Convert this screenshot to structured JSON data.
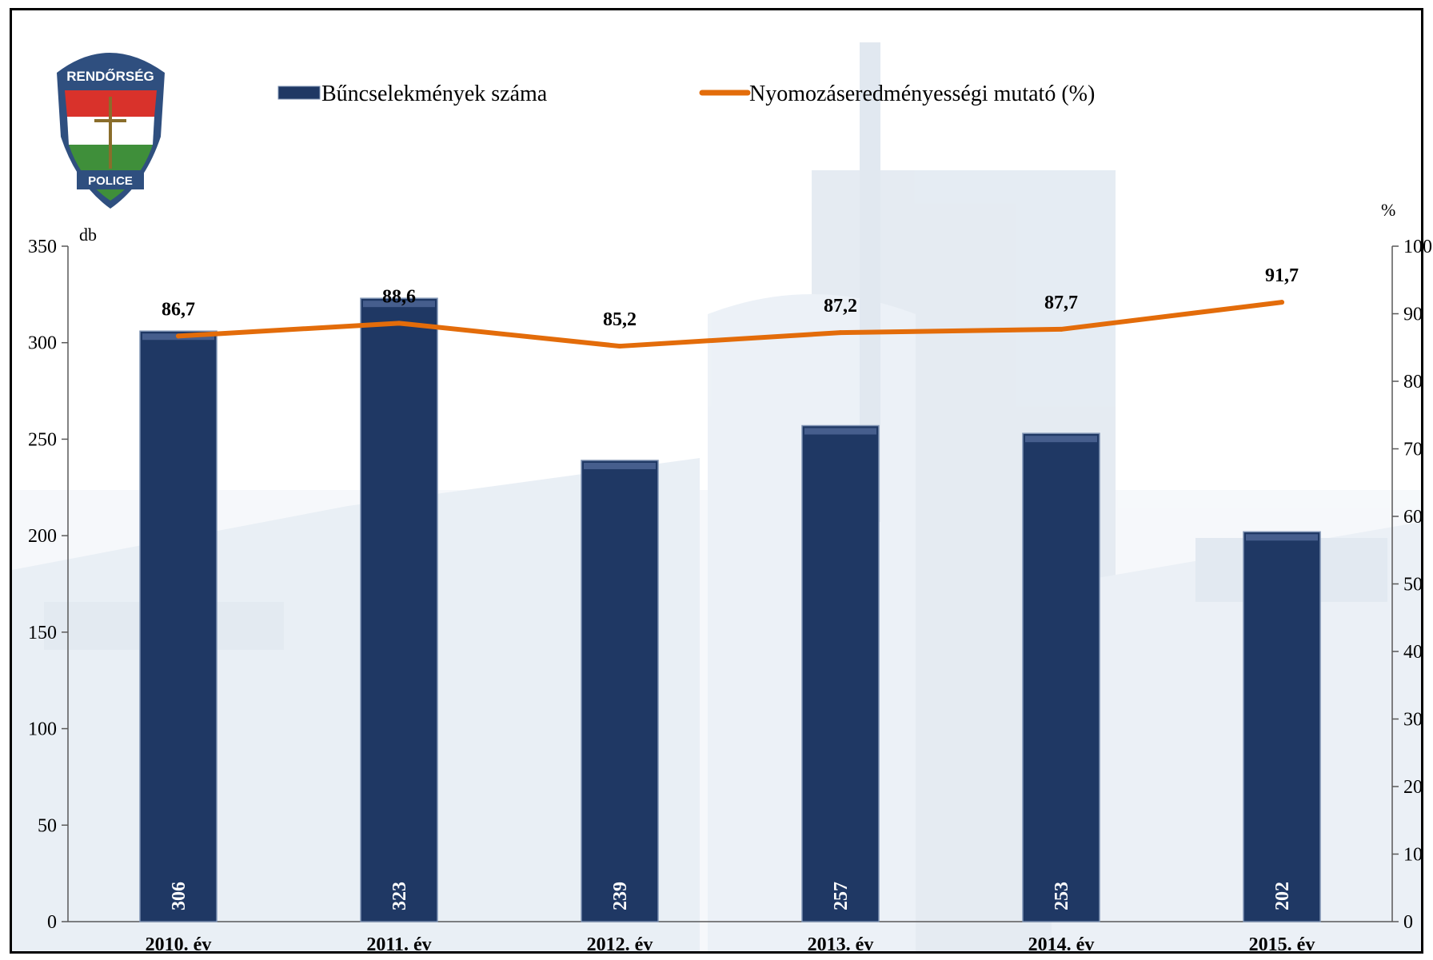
{
  "colors": {
    "bar": "#1f3864",
    "bar_edge": "#7f93b3",
    "line": "#e36c0a",
    "axis": "#595959"
  },
  "logo": {
    "icon": "police-shield-icon",
    "top_text": "RENDŐRSÉG",
    "bottom_text": "POLICE"
  },
  "background": {
    "icon": "police-headquarters-building-icon"
  },
  "chart_data": {
    "type": "bar+line",
    "categories": [
      "2010. év",
      "2011. év",
      "2012. év",
      "2013. év",
      "2014. év",
      "2015. év"
    ],
    "series": [
      {
        "name": "Bűncselekmények száma",
        "type": "bar",
        "axis": "left",
        "values": [
          306,
          323,
          239,
          257,
          253,
          202
        ],
        "labels": [
          "306",
          "323",
          "239",
          "257",
          "253",
          "202"
        ]
      },
      {
        "name": "Nyomozáseredményességi mutató (%)",
        "type": "line",
        "axis": "right",
        "values": [
          86.7,
          88.6,
          85.2,
          87.2,
          87.7,
          91.7
        ],
        "labels": [
          "86,7",
          "88,6",
          "85,2",
          "87,2",
          "87,7",
          "91,7"
        ]
      }
    ],
    "y_left": {
      "unit": "db",
      "range": [
        0,
        350
      ],
      "ticks": [
        0,
        50,
        100,
        150,
        200,
        250,
        300,
        350
      ],
      "tick_labels": [
        "0",
        "50",
        "100",
        "150",
        "200",
        "250",
        "300",
        "350"
      ]
    },
    "y_right": {
      "unit": "%",
      "range": [
        0,
        100
      ],
      "ticks": [
        0,
        10,
        20,
        30,
        40,
        50,
        60,
        70,
        80,
        90,
        100
      ],
      "tick_labels": [
        "0",
        "10",
        "20",
        "30",
        "40",
        "50",
        "60",
        "70",
        "80",
        "90",
        "100"
      ]
    },
    "legend_position": "top",
    "grid": false
  }
}
